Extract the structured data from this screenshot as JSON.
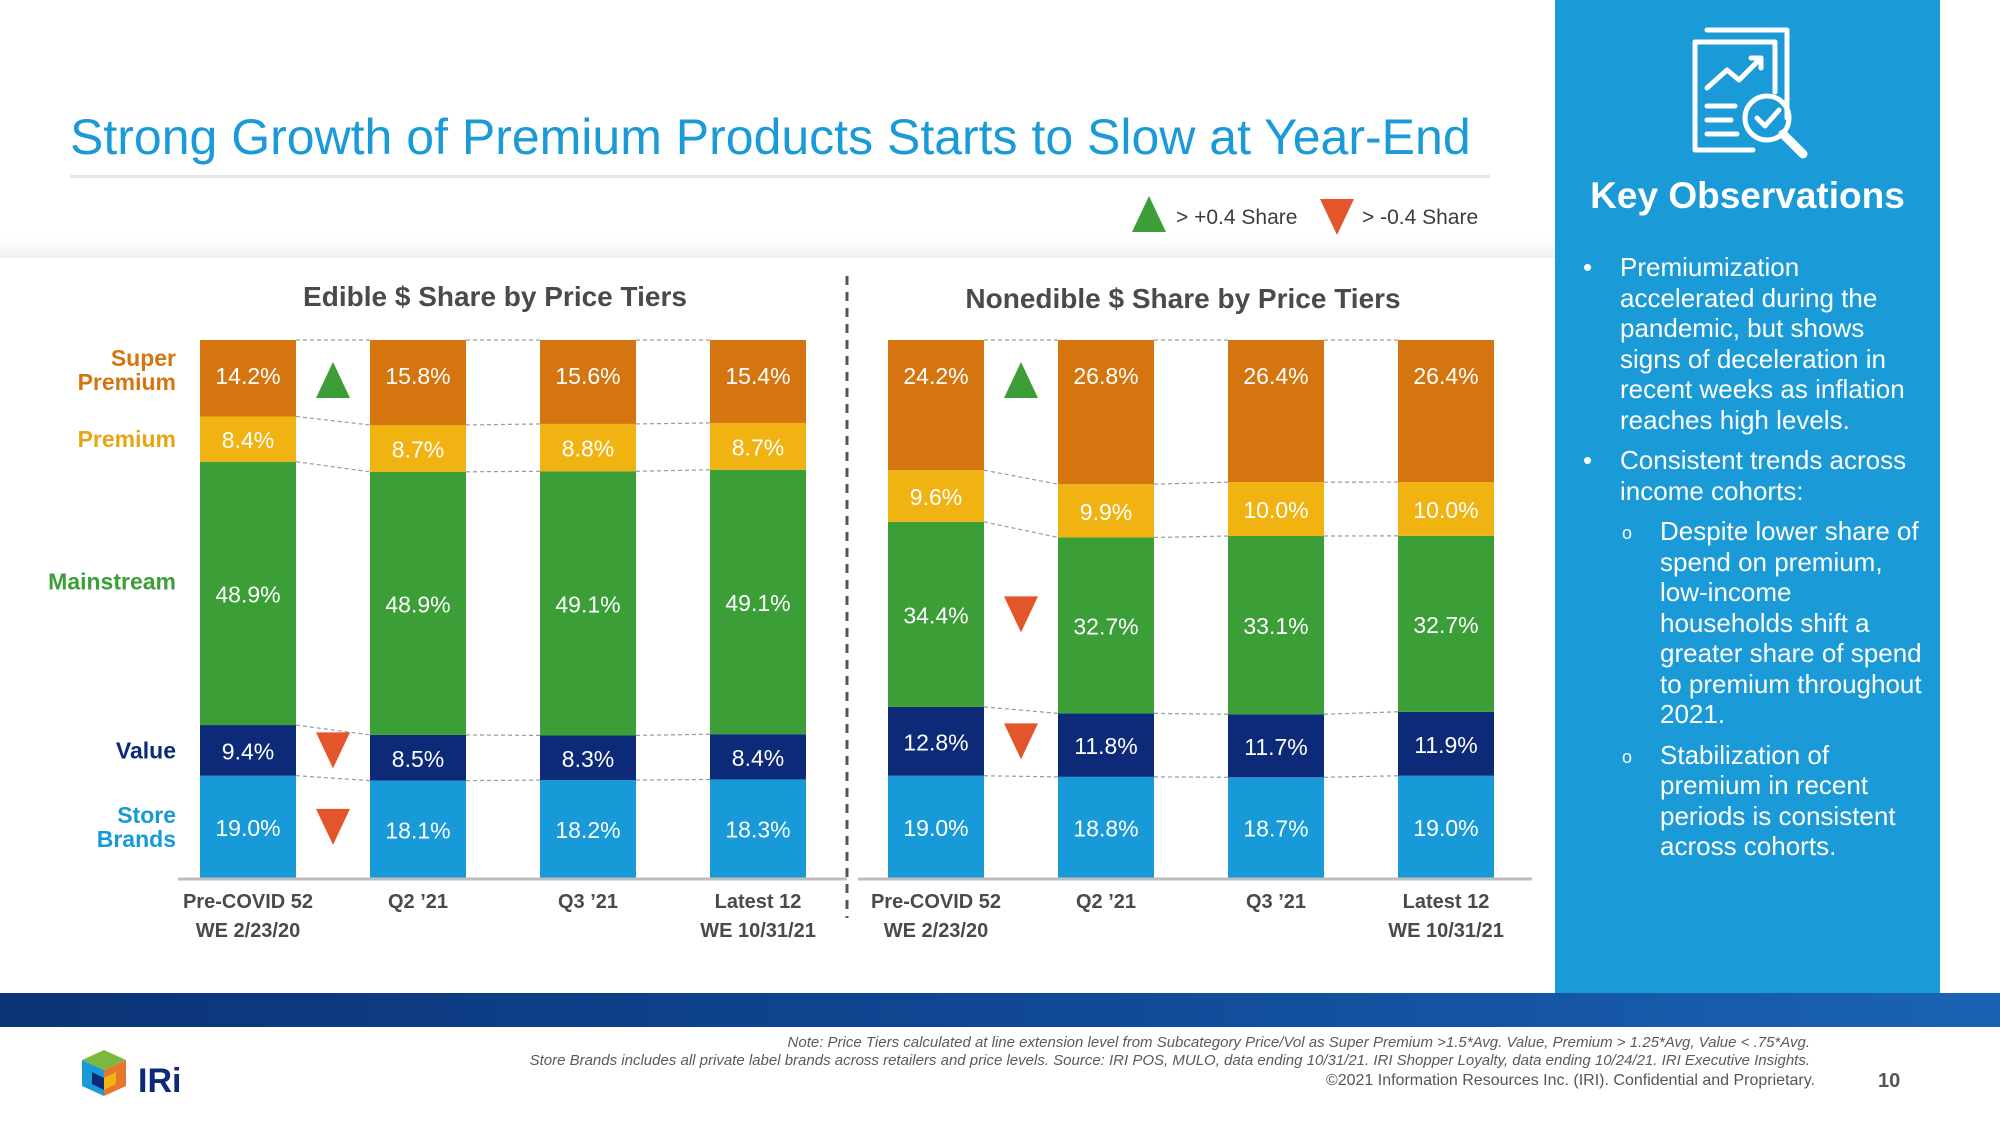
{
  "title": "Strong Growth of Premium Products Starts to Slow at Year-End",
  "legend": {
    "up_label": "> +0.4 Share",
    "down_label": "> -0.4 Share",
    "colors": {
      "up": "#3b9e37",
      "down": "#e3552b"
    }
  },
  "tier_colors": {
    "Super Premium": "#d57510",
    "Premium": "#f0b312",
    "Mainstream": "#3b9e37",
    "Value": "#0d2a78",
    "Store Brands": "#179ad7"
  },
  "tier_label_colors": {
    "Super Premium": "#d57510",
    "Premium": "#e8a512",
    "Mainstream": "#3b9e37",
    "Value": "#0d2a78",
    "Store Brands": "#179ad7"
  },
  "tier_labels": [
    {
      "key": "Super Premium",
      "lines": [
        "Super",
        "Premium"
      ]
    },
    {
      "key": "Premium",
      "lines": [
        "Premium"
      ]
    },
    {
      "key": "Mainstream",
      "lines": [
        "Mainstream"
      ]
    },
    {
      "key": "Value",
      "lines": [
        "Value"
      ]
    },
    {
      "key": "Store Brands",
      "lines": [
        "Store",
        "Brands"
      ]
    }
  ],
  "chart_data": [
    {
      "type": "bar",
      "stacked": true,
      "title": "Edible $ Share by Price Tiers",
      "categories": [
        [
          "Pre-COVID 52",
          "WE 2/23/20"
        ],
        [
          "Q2 ’21"
        ],
        [
          "Q3 ’21"
        ],
        [
          "Latest 12",
          "WE 10/31/21"
        ]
      ],
      "series": [
        {
          "name": "Store Brands",
          "values": [
            19.0,
            18.1,
            18.2,
            18.3
          ],
          "labels": [
            "19.0%",
            "18.1%",
            "18.2%",
            "18.3%"
          ]
        },
        {
          "name": "Value",
          "values": [
            9.4,
            8.5,
            8.3,
            8.4
          ],
          "labels": [
            "9.4%",
            "8.5%",
            "8.3%",
            "8.4%"
          ]
        },
        {
          "name": "Mainstream",
          "values": [
            48.9,
            48.9,
            49.1,
            49.1
          ],
          "labels": [
            "48.9%",
            "48.9%",
            "49.1%",
            "49.1%"
          ]
        },
        {
          "name": "Premium",
          "values": [
            8.4,
            8.7,
            8.8,
            8.7
          ],
          "labels": [
            "8.4%",
            "8.7%",
            "8.8%",
            "8.7%"
          ]
        },
        {
          "name": "Super Premium",
          "values": [
            14.2,
            15.8,
            15.6,
            15.4
          ],
          "labels": [
            "14.2%",
            "15.8%",
            "15.6%",
            "15.4%"
          ]
        }
      ],
      "indicators": [
        {
          "series": "Super Premium",
          "direction": "up"
        },
        {
          "series": "Value",
          "direction": "down"
        },
        {
          "series": "Store Brands",
          "direction": "down"
        }
      ]
    },
    {
      "type": "bar",
      "stacked": true,
      "title": "Nonedible $ Share by Price Tiers",
      "categories": [
        [
          "Pre-COVID 52",
          "WE 2/23/20"
        ],
        [
          "Q2 ’21"
        ],
        [
          "Q3 ’21"
        ],
        [
          "Latest 12",
          "WE 10/31/21"
        ]
      ],
      "series": [
        {
          "name": "Store Brands",
          "values": [
            19.0,
            18.8,
            18.7,
            19.0
          ],
          "labels": [
            "19.0%",
            "18.8%",
            "18.7%",
            "19.0%"
          ]
        },
        {
          "name": "Value",
          "values": [
            12.8,
            11.8,
            11.7,
            11.9
          ],
          "labels": [
            "12.8%",
            "11.8%",
            "11.7%",
            "11.9%"
          ]
        },
        {
          "name": "Mainstream",
          "values": [
            34.4,
            32.7,
            33.1,
            32.7
          ],
          "labels": [
            "34.4%",
            "32.7%",
            "33.1%",
            "32.7%"
          ]
        },
        {
          "name": "Premium",
          "values": [
            9.6,
            9.9,
            10.0,
            10.0
          ],
          "labels": [
            "9.6%",
            "9.9%",
            "10.0%",
            "10.0%"
          ]
        },
        {
          "name": "Super Premium",
          "values": [
            24.2,
            26.8,
            26.4,
            26.4
          ],
          "labels": [
            "24.2%",
            "26.8%",
            "26.4%",
            "26.4%"
          ]
        }
      ],
      "indicators": [
        {
          "series": "Super Premium",
          "direction": "up"
        },
        {
          "series": "Mainstream",
          "direction": "down"
        },
        {
          "series": "Value",
          "direction": "down"
        }
      ]
    }
  ],
  "observations": {
    "heading": "Key Observations",
    "bullet_char": "•",
    "sub_bullet_char": "o",
    "items": [
      {
        "text": "Premiumization accelerated during the pandemic, but shows signs of deceleration in recent weeks as inflation reaches high levels.",
        "subs": []
      },
      {
        "text": "Consistent trends across income cohorts:",
        "subs": [
          "Despite lower share of spend on premium, low-income households shift a greater share of spend to premium throughout 2021.",
          "Stabilization of premium in recent periods is consistent across cohorts."
        ]
      }
    ]
  },
  "footer": {
    "note_line1": "Note: Price Tiers calculated at line extension level from Subcategory Price/Vol as Super Premium >1.5*Avg. Value, Premium > 1.25*Avg, Value < .75*Avg.",
    "note_line2": "Store Brands includes all private label brands across retailers and price levels. Source: IRI POS, MULO, data ending 10/31/21. IRI Shopper Loyalty, data ending 10/24/21. IRI Executive Insights.",
    "copyright": "©2021 Information Resources Inc. (IRI). Confidential and Proprietary.",
    "page_number": "10",
    "logo_text": "IRi"
  }
}
